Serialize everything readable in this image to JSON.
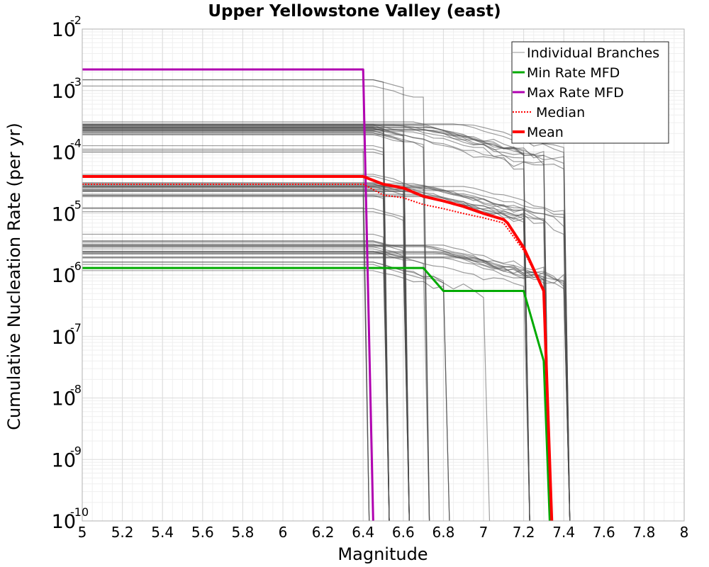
{
  "chart_data": {
    "type": "line",
    "title": "Upper Yellowstone Valley (east)",
    "xlabel": "Magnitude",
    "ylabel": "Cumulative Nucleation Rate (per yr)",
    "xlim": [
      5,
      8
    ],
    "ylim": [
      1e-10,
      0.01
    ],
    "yscale": "log",
    "grid": true,
    "legend_position": "top-right",
    "x_ticks": [
      "5",
      "5.2",
      "5.4",
      "5.6",
      "5.8",
      "6",
      "6.2",
      "6.4",
      "6.6",
      "6.8",
      "7",
      "7.2",
      "7.4",
      "7.6",
      "7.8",
      "8"
    ],
    "y_ticks": [
      {
        "base": "10",
        "exp": "-2",
        "value": 0.01
      },
      {
        "base": "10",
        "exp": "-3",
        "value": 0.001
      },
      {
        "base": "10",
        "exp": "-4",
        "value": 0.0001
      },
      {
        "base": "10",
        "exp": "-5",
        "value": 1e-05
      },
      {
        "base": "10",
        "exp": "-6",
        "value": 1e-06
      },
      {
        "base": "10",
        "exp": "-7",
        "value": 1e-07
      },
      {
        "base": "10",
        "exp": "-8",
        "value": 1e-08
      },
      {
        "base": "10",
        "exp": "-9",
        "value": 1e-09
      },
      {
        "base": "10",
        "exp": "-10",
        "value": 1e-10
      }
    ],
    "branch_groups": [
      {
        "rate": 0.0015,
        "mmax": 6.6,
        "count": 3
      },
      {
        "rate": 0.00025,
        "mmax": 6.6,
        "count": 12
      },
      {
        "rate": 0.00025,
        "mmax": 7.3,
        "count": 14
      },
      {
        "rate": 0.00012,
        "mmax": 6.5,
        "count": 4
      },
      {
        "rate": 4e-05,
        "mmax": 6.6,
        "count": 4
      },
      {
        "rate": 2.5e-05,
        "mmax": 7.3,
        "count": 14
      },
      {
        "rate": 2.5e-05,
        "mmax": 6.5,
        "count": 6
      },
      {
        "rate": 1e-05,
        "mmax": 6.5,
        "count": 3
      },
      {
        "rate": 4e-06,
        "mmax": 6.5,
        "count": 3
      },
      {
        "rate": 3e-06,
        "mmax": 6.6,
        "count": 6
      },
      {
        "rate": 2.5e-06,
        "mmax": 7.3,
        "count": 12
      },
      {
        "rate": 1.5e-06,
        "mmax": 6.9,
        "count": 4
      }
    ],
    "series": [
      {
        "name": "Individual Branches",
        "color": "#4d4d4d",
        "style": "thin"
      },
      {
        "name": "Min Rate MFD",
        "color": "#00aa00",
        "style": "solid",
        "x": [
          5.0,
          6.4,
          6.5,
          6.6,
          6.7,
          6.8,
          6.9,
          7.0,
          7.1,
          7.2,
          7.3,
          7.33
        ],
        "y": [
          1.3e-06,
          1.3e-06,
          1.3e-06,
          1.3e-06,
          1.3e-06,
          5.5e-07,
          5.5e-07,
          5.5e-07,
          5.5e-07,
          5.5e-07,
          4e-08,
          1e-10
        ]
      },
      {
        "name": "Max Rate MFD",
        "color": "#b000b0",
        "style": "solid",
        "x": [
          5.0,
          6.4,
          6.45
        ],
        "y": [
          0.0022,
          0.0022,
          1e-10
        ]
      },
      {
        "name": "Median",
        "color": "#ff0000",
        "style": "dotted",
        "x": [
          5.0,
          6.4,
          6.5,
          6.6,
          6.7,
          6.8,
          6.9,
          7.0,
          7.1,
          7.2,
          7.3,
          7.34
        ],
        "y": [
          3e-05,
          3e-05,
          2e-05,
          1.8e-05,
          1.4e-05,
          1.2e-05,
          1e-05,
          8.5e-06,
          7e-06,
          2.5e-06,
          5.5e-07,
          1e-10
        ]
      },
      {
        "name": "Mean",
        "color": "#ff0000",
        "style": "thick",
        "x": [
          5.0,
          6.4,
          6.5,
          6.6,
          6.7,
          6.8,
          6.9,
          7.0,
          7.1,
          7.12,
          7.2,
          7.3,
          7.34
        ],
        "y": [
          4e-05,
          4e-05,
          3e-05,
          2.6e-05,
          1.9e-05,
          1.6e-05,
          1.3e-05,
          1e-05,
          8e-06,
          7e-06,
          2.8e-06,
          5.5e-07,
          1e-10
        ]
      }
    ]
  }
}
